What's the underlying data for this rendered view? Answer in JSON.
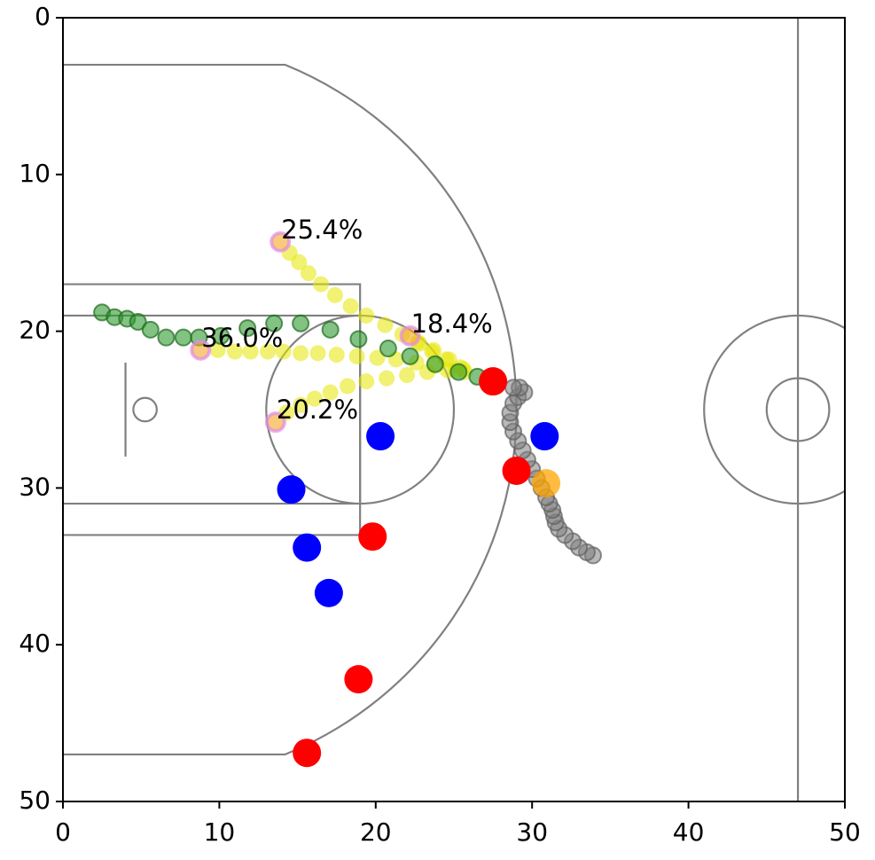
{
  "chart_data": {
    "type": "scatter",
    "xlim": [
      0,
      50
    ],
    "ylim": [
      0,
      50
    ],
    "y_inverted": true,
    "xticks": [
      0,
      10,
      20,
      30,
      40,
      50
    ],
    "yticks": [
      0,
      10,
      20,
      30,
      40,
      50
    ],
    "grid": false,
    "series": [
      {
        "color": "#808080",
        "edgecolor": "#606060",
        "x": [
          33.9,
          33.5,
          33.0,
          32.6,
          32.1,
          31.7,
          31.5,
          31.4,
          31.3,
          31.1,
          30.9,
          30.6,
          30.3,
          30.0,
          29.7,
          29.4,
          29.1,
          28.8,
          28.6,
          28.6,
          28.8,
          29.1,
          29.5,
          29.2,
          28.8
        ],
        "y": [
          34.3,
          34.1,
          33.8,
          33.4,
          33.0,
          32.6,
          32.2,
          31.8,
          31.4,
          31.0,
          30.6,
          30.0,
          29.4,
          28.8,
          28.2,
          27.6,
          27.0,
          26.4,
          25.8,
          25.2,
          24.6,
          24.2,
          23.9,
          23.6,
          23.6
        ]
      },
      {
        "color": "#e6e600",
        "edgecolor": "#e6e600",
        "x": [
          14.5,
          15.1,
          15.7,
          16.5,
          17.4,
          18.4,
          19.4,
          20.6,
          21.7,
          22.7,
          23.7,
          24.7,
          25.6
        ],
        "y": [
          15.0,
          15.6,
          16.3,
          17.0,
          17.7,
          18.4,
          19.0,
          19.6,
          20.2,
          20.7,
          21.2,
          21.8,
          22.4
        ]
      },
      {
        "color": "#e6e600",
        "edgecolor": "#e6e600",
        "x": [
          22.8,
          23.6,
          24.5,
          25.4
        ],
        "y": [
          20.8,
          21.3,
          21.8,
          22.3
        ]
      },
      {
        "color": "#e6e600",
        "edgecolor": "#e6e600",
        "x": [
          9.9,
          11.0,
          12.0,
          13.1,
          14.1,
          15.2,
          16.3,
          17.5,
          18.8,
          20.1,
          21.3,
          22.6,
          23.8,
          25.1
        ],
        "y": [
          21.2,
          21.3,
          21.3,
          21.3,
          21.3,
          21.4,
          21.4,
          21.5,
          21.6,
          21.7,
          21.8,
          22.0,
          22.2,
          22.5
        ]
      },
      {
        "color": "#e6e600",
        "edgecolor": "#e6e600",
        "x": [
          14.3,
          15.2,
          16.1,
          17.1,
          18.2,
          19.4,
          20.7,
          22.0,
          23.3,
          24.6,
          25.7
        ],
        "y": [
          25.2,
          24.7,
          24.3,
          23.9,
          23.5,
          23.2,
          23.0,
          22.8,
          22.6,
          22.5,
          22.6
        ]
      },
      {
        "color": "#2e9a2e",
        "edgecolor": "#1d6b1d",
        "x": [
          2.5,
          3.3,
          4.1,
          4.8,
          5.6,
          6.6,
          7.7,
          8.7,
          10.1,
          11.8,
          13.5,
          15.2,
          17.1,
          18.9,
          20.8,
          22.2,
          23.8,
          25.3,
          26.5
        ],
        "y": [
          18.8,
          19.1,
          19.2,
          19.4,
          19.9,
          20.4,
          20.4,
          20.4,
          20.3,
          19.8,
          19.5,
          19.5,
          19.9,
          20.5,
          21.1,
          21.6,
          22.1,
          22.6,
          22.9
        ]
      },
      {
        "color": "#f5a623",
        "edgecolor": "#e08ae8",
        "x": [
          13.9,
          22.2,
          8.8,
          13.6
        ],
        "y": [
          14.3,
          20.3,
          21.2,
          25.8
        ],
        "values": [
          25.4,
          18.4,
          36.0,
          20.2
        ],
        "value_labels": [
          "25.4%",
          "18.4%",
          "36.0%",
          "20.2%"
        ]
      },
      {
        "color": "#ff0000",
        "edgecolor": "#ff0000",
        "x": [
          27.5,
          29.0,
          19.8,
          18.9,
          15.6
        ],
        "y": [
          23.2,
          28.9,
          33.1,
          42.2,
          46.9
        ]
      },
      {
        "color": "#0000ff",
        "edgecolor": "#0000ff",
        "x": [
          20.3,
          14.6,
          15.6,
          17.0,
          30.8
        ],
        "y": [
          26.7,
          30.1,
          33.8,
          36.7,
          26.7
        ]
      },
      {
        "color": "#ffa500",
        "edgecolor": "#ffa500",
        "x": [
          30.9
        ],
        "y": [
          29.7
        ]
      }
    ]
  }
}
